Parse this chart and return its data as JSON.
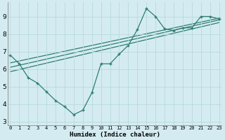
{
  "bg_color": "#d4ecf1",
  "grid_color": "#b8d8de",
  "line_color": "#2e7d72",
  "xlim": [
    -0.3,
    23.3
  ],
  "ylim": [
    2.8,
    9.8
  ],
  "yticks": [
    3,
    4,
    5,
    6,
    7,
    8,
    9
  ],
  "xticks": [
    0,
    1,
    2,
    3,
    4,
    5,
    6,
    7,
    8,
    9,
    10,
    11,
    12,
    13,
    14,
    15,
    16,
    17,
    18,
    19,
    20,
    21,
    22,
    23
  ],
  "xlabel": "Humidex (Indice chaleur)",
  "main_x": [
    0,
    1,
    2,
    3,
    4,
    5,
    6,
    7,
    8,
    9,
    10,
    11,
    12,
    13,
    14,
    15,
    16,
    17,
    18,
    19,
    20,
    21,
    22,
    23
  ],
  "main_y": [
    6.8,
    6.3,
    5.5,
    5.2,
    4.7,
    4.2,
    3.85,
    3.4,
    3.65,
    4.65,
    6.3,
    6.3,
    6.85,
    7.35,
    8.25,
    9.45,
    9.0,
    8.3,
    8.2,
    8.35,
    8.35,
    9.0,
    9.0,
    8.85
  ],
  "trend1_x": [
    0,
    23
  ],
  "trend1_y": [
    6.1,
    8.8
  ],
  "trend2_x": [
    0,
    23
  ],
  "trend2_y": [
    6.35,
    8.9
  ],
  "trend3_x": [
    0,
    23
  ],
  "trend3_y": [
    5.85,
    8.65
  ]
}
